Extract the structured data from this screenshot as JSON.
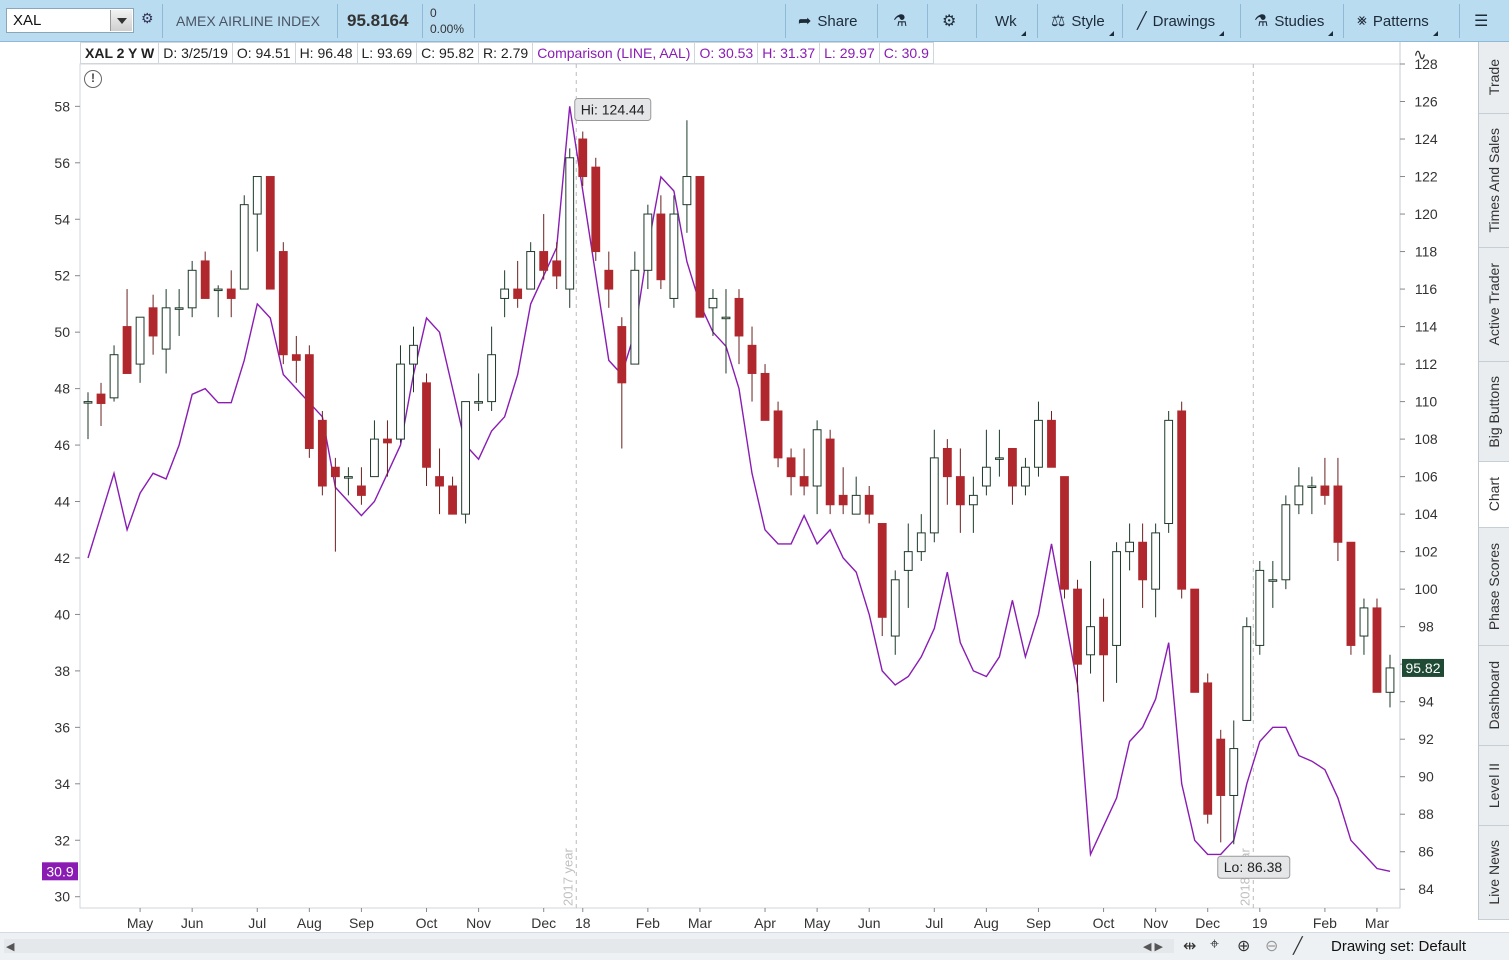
{
  "toolbar": {
    "symbol": "XAL",
    "company": "AMEX AIRLINE INDEX",
    "last": "95.8164",
    "change": "0",
    "change_pct": "0.00%",
    "share_label": "Share",
    "timeframe_label": "Wk",
    "style_label": "Style",
    "drawings_label": "Drawings",
    "studies_label": "Studies",
    "patterns_label": "Patterns"
  },
  "infobar": {
    "title": "XAL 2 Y W",
    "date": "D: 3/25/19",
    "open": "O: 94.51",
    "high": "H: 96.48",
    "low": "L: 93.69",
    "close": "C: 95.82",
    "range": "R: 2.79",
    "comparison": "Comparison (LINE, AAL)",
    "cmp_open": "O: 30.53",
    "cmp_high": "H: 31.37",
    "cmp_low": "L: 29.97",
    "cmp_close": "C: 30.9"
  },
  "side_tabs": [
    "Trade",
    "Times And Sales",
    "Active Trader",
    "Big Buttons",
    "Chart",
    "Phase Scores",
    "Dashboard",
    "Level II",
    "Live News"
  ],
  "active_tab": "Chart",
  "bottom": {
    "drawing_set": "Drawing set: Default"
  },
  "colors": {
    "up_candle": "#ffffff",
    "down_candle": "#b0282d",
    "comparison_line": "#8a1cb4",
    "wick": "#1e3a2a"
  },
  "chart_data": {
    "type": "candlestick",
    "price_axis_right": {
      "ylim": [
        83,
        128
      ],
      "ticks": [
        84,
        86,
        88,
        90,
        92,
        94,
        96,
        98,
        100,
        102,
        104,
        106,
        108,
        110,
        112,
        114,
        116,
        118,
        120,
        122,
        124,
        126,
        128
      ]
    },
    "comparison_axis_left": {
      "ylim": [
        29.6,
        59.5
      ],
      "ticks": [
        30,
        32,
        34,
        36,
        38,
        40,
        42,
        44,
        46,
        48,
        50,
        52,
        54,
        56,
        58
      ]
    },
    "x_labels": [
      "May",
      "Jun",
      "Jul",
      "Aug",
      "Sep",
      "Oct",
      "Nov",
      "Dec",
      "18",
      "Feb",
      "Mar",
      "Apr",
      "May",
      "Jun",
      "Jul",
      "Aug",
      "Sep",
      "Oct",
      "Nov",
      "Dec",
      "19",
      "Feb",
      "Mar"
    ],
    "year_markers": [
      "2017 year",
      "2018 year"
    ],
    "annotations": {
      "high": "Hi: 124.44",
      "low": "Lo: 86.38"
    },
    "last_price_label": "95.82",
    "comparison_last_label": "30.9",
    "candles": [
      {
        "o": 110.0,
        "h": 110.5,
        "l": 108.0,
        "c": 110.0
      },
      {
        "o": 110.4,
        "h": 111.0,
        "l": 108.7,
        "c": 109.9
      },
      {
        "o": 110.2,
        "h": 113.0,
        "l": 110.0,
        "c": 112.5
      },
      {
        "o": 114.0,
        "h": 116.0,
        "l": 111.5,
        "c": 111.5
      },
      {
        "o": 112.0,
        "h": 114.5,
        "l": 111.0,
        "c": 114.5
      },
      {
        "o": 115.0,
        "h": 115.7,
        "l": 112.5,
        "c": 113.5
      },
      {
        "o": 112.8,
        "h": 116.0,
        "l": 111.5,
        "c": 115.0
      },
      {
        "o": 115.0,
        "h": 116.0,
        "l": 113.5,
        "c": 115.0
      },
      {
        "o": 115.0,
        "h": 117.5,
        "l": 114.5,
        "c": 117.0
      },
      {
        "o": 117.5,
        "h": 118.0,
        "l": 115.5,
        "c": 115.5
      },
      {
        "o": 116.0,
        "h": 116.2,
        "l": 114.5,
        "c": 116.0
      },
      {
        "o": 116.0,
        "h": 117.0,
        "l": 114.5,
        "c": 115.5
      },
      {
        "o": 116.0,
        "h": 121.0,
        "l": 116.0,
        "c": 120.5
      },
      {
        "o": 120.0,
        "h": 122.0,
        "l": 118.0,
        "c": 122.0
      },
      {
        "o": 122.0,
        "h": 122.0,
        "l": 116.0,
        "c": 116.0
      },
      {
        "o": 118.0,
        "h": 118.5,
        "l": 112.0,
        "c": 112.5
      },
      {
        "o": 112.5,
        "h": 113.5,
        "l": 111.0,
        "c": 112.2
      },
      {
        "o": 112.5,
        "h": 113.0,
        "l": 107.0,
        "c": 107.5
      },
      {
        "o": 109.0,
        "h": 109.5,
        "l": 105.0,
        "c": 105.5
      },
      {
        "o": 106.5,
        "h": 107.0,
        "l": 102.0,
        "c": 106.0
      },
      {
        "o": 106.0,
        "h": 106.5,
        "l": 105.0,
        "c": 106.0
      },
      {
        "o": 105.5,
        "h": 106.5,
        "l": 104.5,
        "c": 105.0
      },
      {
        "o": 106.0,
        "h": 109.0,
        "l": 106.0,
        "c": 108.0
      },
      {
        "o": 108.0,
        "h": 109.0,
        "l": 106.0,
        "c": 107.8
      },
      {
        "o": 108.0,
        "h": 113.0,
        "l": 107.8,
        "c": 112.0
      },
      {
        "o": 112.0,
        "h": 114.0,
        "l": 110.5,
        "c": 113.0
      },
      {
        "o": 111.0,
        "h": 111.5,
        "l": 105.5,
        "c": 106.5
      },
      {
        "o": 106.0,
        "h": 107.5,
        "l": 104.0,
        "c": 105.5
      },
      {
        "o": 105.5,
        "h": 106.0,
        "l": 104.0,
        "c": 104.0
      },
      {
        "o": 104.0,
        "h": 110.0,
        "l": 103.5,
        "c": 110.0
      },
      {
        "o": 110.0,
        "h": 111.5,
        "l": 109.5,
        "c": 110.0
      },
      {
        "o": 110.0,
        "h": 114.0,
        "l": 109.5,
        "c": 112.5
      },
      {
        "o": 115.5,
        "h": 117.0,
        "l": 114.5,
        "c": 116.0
      },
      {
        "o": 116.0,
        "h": 117.5,
        "l": 115.0,
        "c": 115.5
      },
      {
        "o": 116.0,
        "h": 118.5,
        "l": 116.0,
        "c": 118.0
      },
      {
        "o": 118.0,
        "h": 120.0,
        "l": 116.5,
        "c": 117.0
      },
      {
        "o": 117.5,
        "h": 118.5,
        "l": 116.0,
        "c": 116.7
      },
      {
        "o": 116.0,
        "h": 123.5,
        "l": 115.0,
        "c": 123.0
      },
      {
        "o": 124.0,
        "h": 124.4,
        "l": 121.5,
        "c": 122.0
      },
      {
        "o": 122.5,
        "h": 123.0,
        "l": 117.5,
        "c": 118.0
      },
      {
        "o": 117.0,
        "h": 118.0,
        "l": 115.0,
        "c": 116.0
      },
      {
        "o": 114.0,
        "h": 114.5,
        "l": 107.5,
        "c": 111.0
      },
      {
        "o": 112.0,
        "h": 118.0,
        "l": 112.0,
        "c": 117.0
      },
      {
        "o": 117.0,
        "h": 120.5,
        "l": 116.0,
        "c": 120.0
      },
      {
        "o": 120.0,
        "h": 121.0,
        "l": 116.0,
        "c": 116.5
      },
      {
        "o": 115.5,
        "h": 121.0,
        "l": 115.0,
        "c": 120.0
      },
      {
        "o": 120.5,
        "h": 125.0,
        "l": 119.0,
        "c": 122.0
      },
      {
        "o": 122.0,
        "h": 122.0,
        "l": 114.5,
        "c": 114.5
      },
      {
        "o": 115.0,
        "h": 116.0,
        "l": 113.5,
        "c": 115.5
      },
      {
        "o": 114.5,
        "h": 116.0,
        "l": 111.5,
        "c": 114.5
      },
      {
        "o": 115.5,
        "h": 116.0,
        "l": 112.0,
        "c": 113.5
      },
      {
        "o": 113.0,
        "h": 114.0,
        "l": 110.0,
        "c": 111.5
      },
      {
        "o": 111.5,
        "h": 112.0,
        "l": 109.0,
        "c": 109.0
      },
      {
        "o": 109.5,
        "h": 110.0,
        "l": 106.5,
        "c": 107.0
      },
      {
        "o": 107.0,
        "h": 107.5,
        "l": 105.0,
        "c": 106.0
      },
      {
        "o": 106.0,
        "h": 107.5,
        "l": 105.0,
        "c": 105.5
      },
      {
        "o": 105.5,
        "h": 109.0,
        "l": 104.0,
        "c": 108.5
      },
      {
        "o": 108.0,
        "h": 108.5,
        "l": 104.0,
        "c": 104.5
      },
      {
        "o": 105.0,
        "h": 106.5,
        "l": 104.0,
        "c": 104.5
      },
      {
        "o": 104.0,
        "h": 106.0,
        "l": 104.0,
        "c": 105.0
      },
      {
        "o": 105.0,
        "h": 105.5,
        "l": 103.5,
        "c": 104.0
      },
      {
        "o": 103.5,
        "h": 103.5,
        "l": 97.5,
        "c": 98.5
      },
      {
        "o": 97.5,
        "h": 101.0,
        "l": 96.5,
        "c": 100.5
      },
      {
        "o": 101.0,
        "h": 103.5,
        "l": 99.0,
        "c": 102.0
      },
      {
        "o": 102.0,
        "h": 104.0,
        "l": 101.5,
        "c": 103.0
      },
      {
        "o": 103.0,
        "h": 108.5,
        "l": 102.5,
        "c": 107.0
      },
      {
        "o": 107.5,
        "h": 108.0,
        "l": 104.5,
        "c": 106.0
      },
      {
        "o": 106.0,
        "h": 107.5,
        "l": 103.0,
        "c": 104.5
      },
      {
        "o": 104.5,
        "h": 106.0,
        "l": 103.0,
        "c": 105.0
      },
      {
        "o": 105.5,
        "h": 108.5,
        "l": 105.0,
        "c": 106.5
      },
      {
        "o": 107.0,
        "h": 108.5,
        "l": 106.0,
        "c": 107.0
      },
      {
        "o": 107.5,
        "h": 107.5,
        "l": 104.5,
        "c": 105.5
      },
      {
        "o": 105.5,
        "h": 107.0,
        "l": 105.0,
        "c": 106.5
      },
      {
        "o": 106.5,
        "h": 110.0,
        "l": 106.0,
        "c": 109.0
      },
      {
        "o": 109.0,
        "h": 109.5,
        "l": 106.5,
        "c": 106.5
      },
      {
        "o": 106.0,
        "h": 106.0,
        "l": 99.5,
        "c": 100.0
      },
      {
        "o": 100.0,
        "h": 100.5,
        "l": 94.5,
        "c": 96.0
      },
      {
        "o": 96.5,
        "h": 101.5,
        "l": 95.5,
        "c": 98.0
      },
      {
        "o": 98.5,
        "h": 99.5,
        "l": 94.0,
        "c": 96.5
      },
      {
        "o": 97.0,
        "h": 102.5,
        "l": 95.0,
        "c": 102.0
      },
      {
        "o": 102.0,
        "h": 103.5,
        "l": 101.0,
        "c": 102.5
      },
      {
        "o": 102.5,
        "h": 103.5,
        "l": 99.0,
        "c": 100.5
      },
      {
        "o": 100.0,
        "h": 103.5,
        "l": 98.5,
        "c": 103.0
      },
      {
        "o": 103.5,
        "h": 109.5,
        "l": 103.0,
        "c": 109.0
      },
      {
        "o": 109.5,
        "h": 110.0,
        "l": 99.5,
        "c": 100.0
      },
      {
        "o": 100.0,
        "h": 100.0,
        "l": 94.5,
        "c": 94.5
      },
      {
        "o": 95.0,
        "h": 95.5,
        "l": 87.5,
        "c": 88.0
      },
      {
        "o": 92.0,
        "h": 92.5,
        "l": 86.5,
        "c": 89.0
      },
      {
        "o": 89.0,
        "h": 93.0,
        "l": 86.4,
        "c": 91.5
      },
      {
        "o": 93.0,
        "h": 98.5,
        "l": 93.0,
        "c": 98.0
      },
      {
        "o": 97.0,
        "h": 101.5,
        "l": 96.5,
        "c": 101.0
      },
      {
        "o": 100.5,
        "h": 101.5,
        "l": 99.0,
        "c": 100.5
      },
      {
        "o": 100.5,
        "h": 105.0,
        "l": 100.0,
        "c": 104.5
      },
      {
        "o": 104.5,
        "h": 106.5,
        "l": 104.0,
        "c": 105.5
      },
      {
        "o": 105.5,
        "h": 106.0,
        "l": 104.0,
        "c": 105.5
      },
      {
        "o": 105.5,
        "h": 107.0,
        "l": 104.5,
        "c": 105.0
      },
      {
        "o": 105.5,
        "h": 107.0,
        "l": 101.5,
        "c": 102.5
      },
      {
        "o": 102.5,
        "h": 102.5,
        "l": 96.5,
        "c": 97.0
      },
      {
        "o": 97.5,
        "h": 99.5,
        "l": 96.5,
        "c": 99.0
      },
      {
        "o": 99.0,
        "h": 99.5,
        "l": 94.5,
        "c": 94.5
      },
      {
        "o": 94.5,
        "h": 96.5,
        "l": 93.7,
        "c": 95.8
      }
    ],
    "comparison_series": {
      "name": "AAL",
      "values": [
        42.0,
        43.5,
        45.0,
        43.0,
        44.3,
        45.0,
        44.8,
        46.0,
        47.8,
        48.0,
        47.5,
        47.5,
        49.0,
        51.0,
        50.5,
        48.5,
        48.0,
        47.5,
        47.0,
        44.5,
        44.0,
        43.5,
        44.0,
        45.0,
        46.0,
        48.5,
        50.5,
        50.0,
        48.0,
        46.0,
        45.5,
        46.5,
        47.0,
        48.5,
        51.0,
        52.0,
        53.0,
        58.0,
        55.0,
        52.0,
        49.0,
        48.5,
        50.0,
        53.0,
        55.5,
        55.0,
        52.5,
        51.0,
        50.0,
        49.5,
        48.0,
        45.0,
        43.0,
        42.5,
        42.5,
        43.5,
        42.5,
        43.0,
        42.0,
        41.5,
        40.0,
        38.0,
        37.5,
        37.8,
        38.5,
        39.5,
        41.5,
        39.0,
        38.0,
        37.8,
        38.5,
        40.5,
        38.5,
        40.0,
        42.5,
        40.0,
        37.5,
        31.5,
        32.5,
        33.5,
        35.5,
        36.0,
        37.0,
        39.0,
        34.0,
        32.0,
        31.5,
        31.5,
        32.0,
        34.0,
        35.5,
        36.0,
        36.0,
        35.0,
        34.8,
        34.5,
        33.5,
        32.0,
        31.5,
        31.0,
        30.9
      ]
    }
  }
}
